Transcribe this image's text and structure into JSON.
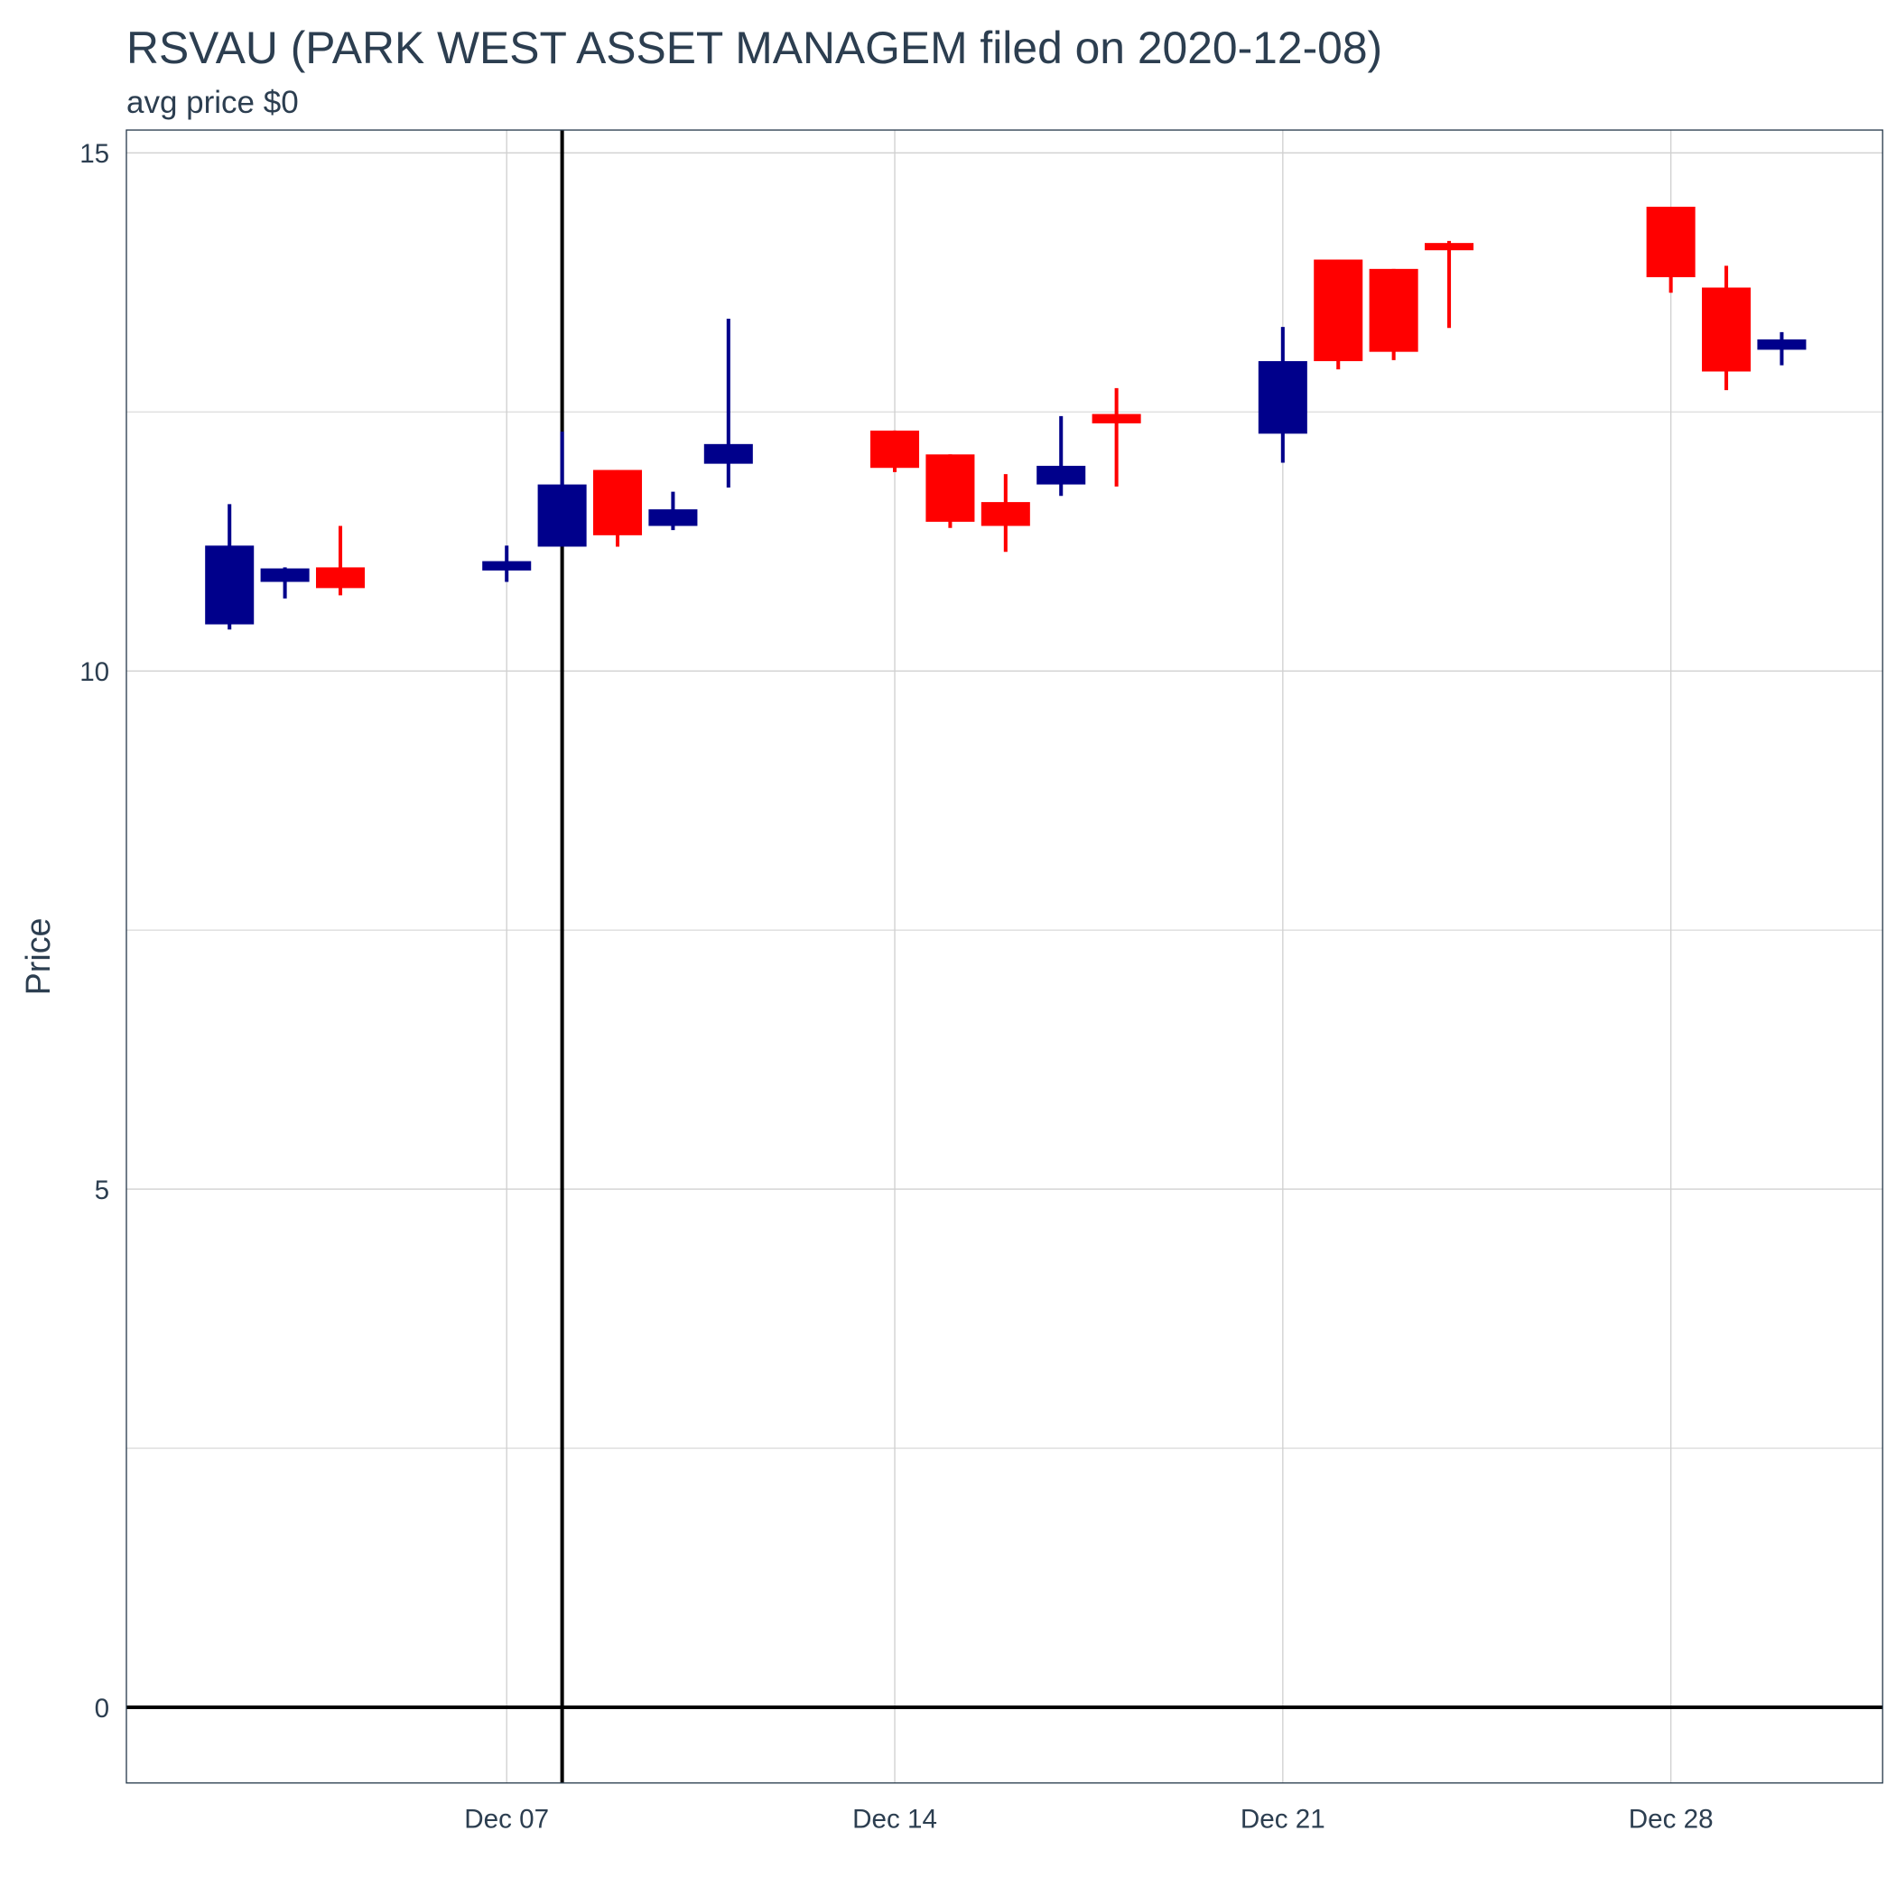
{
  "chart_data": {
    "type": "candlestick",
    "title": "RSVAU (PARK WEST ASSET MANAGEM filed on 2020-12-08)",
    "subtitle": "avg price $0",
    "y_label": "Price",
    "x": [
      "Dec 02",
      "Dec 03",
      "Dec 04",
      "Dec 07",
      "Dec 08",
      "Dec 09",
      "Dec 10",
      "Dec 11",
      "Dec 14",
      "Dec 15",
      "Dec 16",
      "Dec 17",
      "Dec 18",
      "Dec 21",
      "Dec 22",
      "Dec 23",
      "Dec 24",
      "Dec 28",
      "Dec 29",
      "Dec 30"
    ],
    "open": [
      10.45,
      10.86,
      11.0,
      10.97,
      11.2,
      11.94,
      11.4,
      12.0,
      12.32,
      12.09,
      11.63,
      11.8,
      12.48,
      12.29,
      13.97,
      13.88,
      14.13,
      14.48,
      13.7,
      13.1
    ],
    "high": [
      11.61,
      11.0,
      11.4,
      11.21,
      12.31,
      11.94,
      11.73,
      13.4,
      12.32,
      12.09,
      11.9,
      12.46,
      12.73,
      13.32,
      13.97,
      13.88,
      14.15,
      14.48,
      13.91,
      13.27
    ],
    "low": [
      10.4,
      10.7,
      10.73,
      10.86,
      11.2,
      11.2,
      11.36,
      11.77,
      11.92,
      11.38,
      11.15,
      11.69,
      11.78,
      12.01,
      12.91,
      13.0,
      13.31,
      13.65,
      12.71,
      12.95
    ],
    "close": [
      11.21,
      10.99,
      10.8,
      11.06,
      11.8,
      11.31,
      11.56,
      12.19,
      11.96,
      11.44,
      11.4,
      11.98,
      12.39,
      12.99,
      12.99,
      13.08,
      14.06,
      13.8,
      12.89,
      13.2
    ],
    "up_color": "#00008b",
    "down_color": "#ff0000",
    "xlim": [
      0.14,
      31.82
    ],
    "xticks": [
      "Dec 07",
      "Dec 14",
      "Dec 21",
      "Dec 28"
    ],
    "ylim": [
      -0.73,
      15.22
    ],
    "yticks": [
      0,
      5,
      10,
      15
    ],
    "y_minor_grid": [
      2.5,
      7.5,
      12.5
    ],
    "grid": true,
    "vline_x": "Dec 08",
    "hline_y": 0
  }
}
